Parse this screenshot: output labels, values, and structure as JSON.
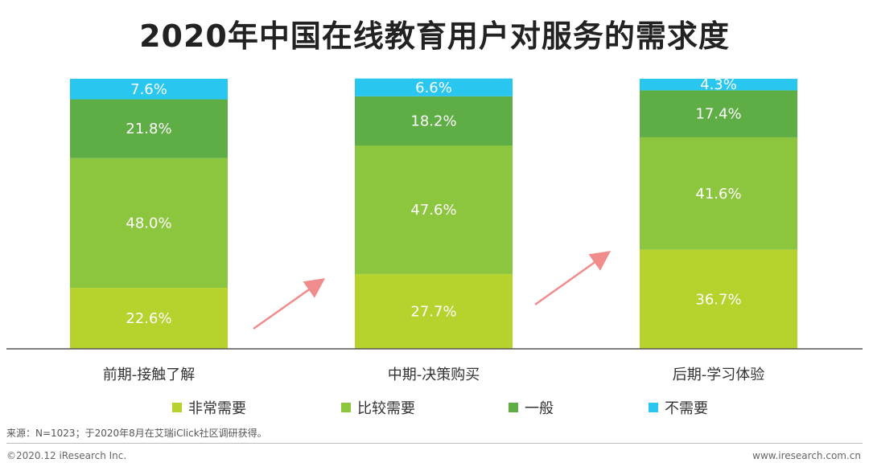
{
  "chart_data": {
    "type": "bar",
    "stacked": true,
    "percent": true,
    "title": "2020年中国在线教育用户对服务的需求度",
    "categories": [
      "前期-接触了解",
      "中期-决策购买",
      "后期-学习体验"
    ],
    "series": [
      {
        "name": "非常需要",
        "color": "#b5d22d",
        "values": [
          22.6,
          27.7,
          36.7
        ]
      },
      {
        "name": "比较需要",
        "color": "#8cc63f",
        "values": [
          48.0,
          47.6,
          41.6
        ]
      },
      {
        "name": "一般",
        "color": "#5eae45",
        "values": [
          21.8,
          18.2,
          17.4
        ]
      },
      {
        "name": "不需要",
        "color": "#29c7f0",
        "values": [
          7.6,
          6.6,
          4.3
        ]
      }
    ],
    "value_labels": [
      [
        "22.6%",
        "48.0%",
        "21.8%",
        "7.6%"
      ],
      [
        "27.7%",
        "47.6%",
        "18.2%",
        "6.6%"
      ],
      [
        "36.7%",
        "41.6%",
        "17.4%",
        "4.3%"
      ]
    ],
    "ylim": [
      0,
      100
    ],
    "legend_position": "bottom",
    "arrow_color": "#f08c8c"
  },
  "footer": {
    "source": "来源：N=1023；于2020年8月在艾瑞iClick社区调研获得。",
    "copyright": "©2020.12 iResearch Inc.",
    "website": "www.iresearch.com.cn"
  }
}
